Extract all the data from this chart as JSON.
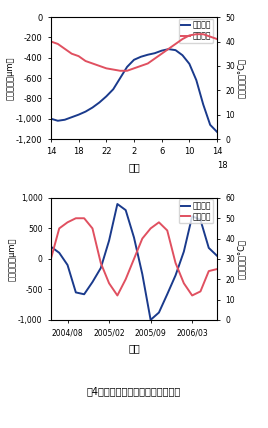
{
  "top_chart": {
    "xlabel": "時刻",
    "ylabel_left": "目地変位（μm）",
    "ylabel_right": "躯体温度（°C）",
    "ylim_left": [
      -1200,
      0
    ],
    "ylim_right": [
      0,
      50
    ],
    "displacement_x": [
      14,
      15,
      16,
      17,
      18,
      19,
      20,
      21,
      22,
      23,
      24,
      25,
      26,
      27,
      28,
      29,
      30,
      31,
      32,
      33,
      34,
      35,
      36,
      37,
      38
    ],
    "displacement_y": [
      -1000,
      -1020,
      -1010,
      -985,
      -960,
      -930,
      -890,
      -840,
      -780,
      -710,
      -600,
      -490,
      -420,
      -390,
      -370,
      -355,
      -330,
      -315,
      -325,
      -375,
      -460,
      -620,
      -860,
      -1060,
      -1130
    ],
    "temperature_x": [
      14,
      15,
      16,
      17,
      18,
      19,
      20,
      21,
      22,
      23,
      24,
      25,
      26,
      27,
      28,
      29,
      30,
      31,
      32,
      33,
      34,
      35,
      36,
      37,
      38
    ],
    "temperature_y": [
      40,
      39,
      37,
      35,
      34,
      32,
      31,
      30,
      29,
      28.5,
      28,
      28,
      29,
      30,
      31,
      33,
      35,
      37,
      39,
      41,
      42.5,
      43,
      43,
      42,
      41
    ],
    "disp_color": "#1a3a8c",
    "temp_color": "#e05060",
    "legend_disp": "目地変位",
    "legend_temp": "躯体温度"
  },
  "bottom_chart": {
    "xlabel": "年月",
    "ylabel_left": "目地変位（μm）",
    "ylabel_right": "躯体温度（°C）",
    "ylim_left": [
      -1000,
      1000
    ],
    "ylim_right": [
      0,
      60
    ],
    "displacement_x": [
      0,
      1,
      2,
      3,
      4,
      5,
      6,
      7,
      8,
      9,
      10,
      11,
      12,
      13,
      14,
      15,
      16,
      17,
      18,
      19,
      20
    ],
    "displacement_y": [
      200,
      100,
      -100,
      -550,
      -580,
      -380,
      -150,
      300,
      900,
      800,
      350,
      -250,
      -1000,
      -880,
      -580,
      -270,
      120,
      700,
      640,
      180,
      50
    ],
    "temperature_x": [
      0,
      1,
      2,
      3,
      4,
      5,
      6,
      7,
      8,
      9,
      10,
      11,
      12,
      13,
      14,
      15,
      16,
      17,
      18,
      19,
      20
    ],
    "temperature_y": [
      30,
      45,
      48,
      50,
      50,
      45,
      28,
      18,
      12,
      20,
      30,
      40,
      45,
      48,
      44,
      28,
      18,
      12,
      14,
      24,
      25
    ],
    "disp_color": "#1a3a8c",
    "temp_color": "#e05060",
    "legend_disp": "目地変位",
    "legend_temp": "躯体温度"
  },
  "caption": "围4　目地部伸縮の日および年変動",
  "background_color": "#ffffff"
}
